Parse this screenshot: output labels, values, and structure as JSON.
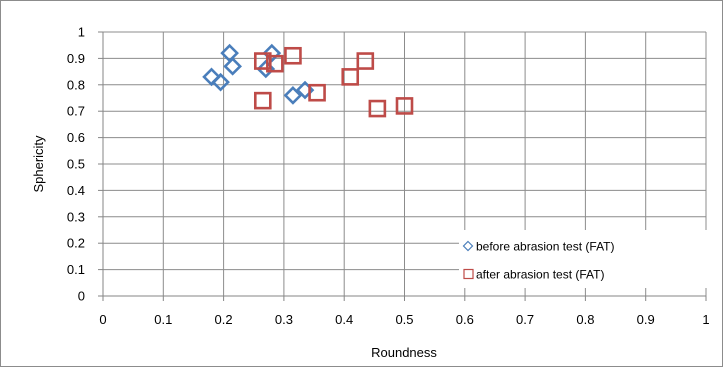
{
  "chart_data": {
    "type": "scatter",
    "title": "",
    "xlabel": "Roundness",
    "ylabel": "Sphericity",
    "xlim": [
      0,
      1
    ],
    "ylim": [
      0,
      1
    ],
    "xticks": [
      "0",
      "0.1",
      "0.2",
      "0.3",
      "0.4",
      "0.5",
      "0.6",
      "0.7",
      "0.8",
      "0.9",
      "1"
    ],
    "yticks": [
      "0",
      "0.1",
      "0.2",
      "0.3",
      "0.4",
      "0.5",
      "0.6",
      "0.7",
      "0.8",
      "0.9",
      "1"
    ],
    "grid": true,
    "legend_position": "bottom-right",
    "series": [
      {
        "name": "before abrasion test (FAT)",
        "marker": "diamond",
        "color": "#4a7ebb",
        "points": [
          {
            "x": 0.18,
            "y": 0.83
          },
          {
            "x": 0.195,
            "y": 0.81
          },
          {
            "x": 0.21,
            "y": 0.92
          },
          {
            "x": 0.215,
            "y": 0.87
          },
          {
            "x": 0.27,
            "y": 0.86
          },
          {
            "x": 0.28,
            "y": 0.92
          },
          {
            "x": 0.315,
            "y": 0.76
          },
          {
            "x": 0.335,
            "y": 0.78
          }
        ]
      },
      {
        "name": "after abrasion test (FAT)",
        "marker": "square",
        "color": "#be4b48",
        "points": [
          {
            "x": 0.265,
            "y": 0.74
          },
          {
            "x": 0.265,
            "y": 0.89
          },
          {
            "x": 0.285,
            "y": 0.88
          },
          {
            "x": 0.315,
            "y": 0.91
          },
          {
            "x": 0.355,
            "y": 0.77
          },
          {
            "x": 0.41,
            "y": 0.83
          },
          {
            "x": 0.435,
            "y": 0.89
          },
          {
            "x": 0.455,
            "y": 0.71
          },
          {
            "x": 0.5,
            "y": 0.72
          }
        ]
      }
    ]
  }
}
